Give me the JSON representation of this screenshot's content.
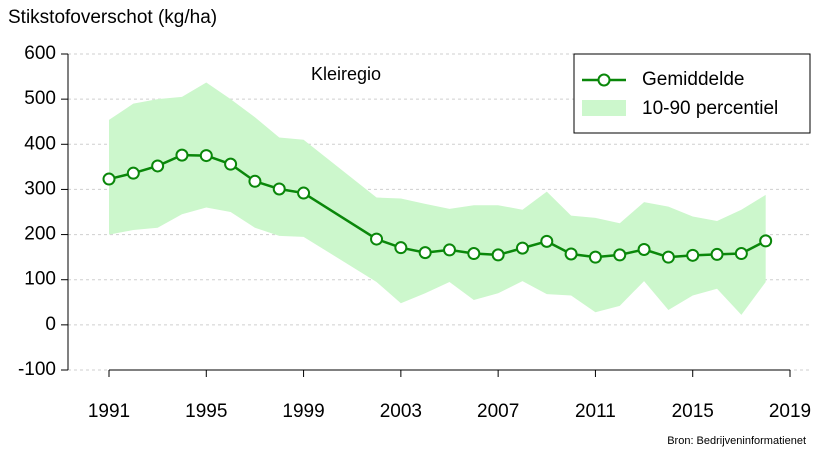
{
  "chart_data": {
    "type": "line",
    "title": "Stikstofoverschot (kg/ha)",
    "annotation": "Kleiregio",
    "source": "Bron: Bedrijveninformatienet",
    "x": [
      1991,
      1992,
      1993,
      1994,
      1995,
      1996,
      1997,
      1998,
      1999,
      2002,
      2003,
      2004,
      2005,
      2006,
      2007,
      2008,
      2009,
      2010,
      2011,
      2012,
      2013,
      2014,
      2015,
      2016,
      2017,
      2018
    ],
    "series": [
      {
        "name": "Gemiddelde",
        "color": "#0a870a",
        "values": [
          323,
          336,
          352,
          376,
          375,
          356,
          318,
          301,
          292,
          190,
          171,
          160,
          166,
          158,
          155,
          170,
          185,
          157,
          150,
          155,
          167,
          150,
          154,
          156,
          158,
          186
        ]
      },
      {
        "name": "10-90 percentiel",
        "color": "#ccf7cc",
        "high": [
          454,
          490,
          500,
          505,
          537,
          500,
          460,
          415,
          410,
          282,
          280,
          268,
          257,
          265,
          265,
          255,
          295,
          242,
          237,
          225,
          272,
          262,
          240,
          230,
          255,
          288
        ],
        "low": [
          200,
          210,
          215,
          245,
          260,
          250,
          215,
          197,
          195,
          95,
          48,
          70,
          95,
          55,
          70,
          97,
          68,
          65,
          28,
          42,
          97,
          33,
          65,
          80,
          22,
          95
        ]
      }
    ],
    "xlim": [
      1991,
      2019
    ],
    "xticks": [
      1991,
      1995,
      1999,
      2003,
      2007,
      2011,
      2015,
      2019
    ],
    "ylim": [
      -100,
      600
    ],
    "yticks": [
      -100,
      0,
      100,
      200,
      300,
      400,
      500,
      600
    ],
    "grid": true,
    "legend": "top-right"
  }
}
